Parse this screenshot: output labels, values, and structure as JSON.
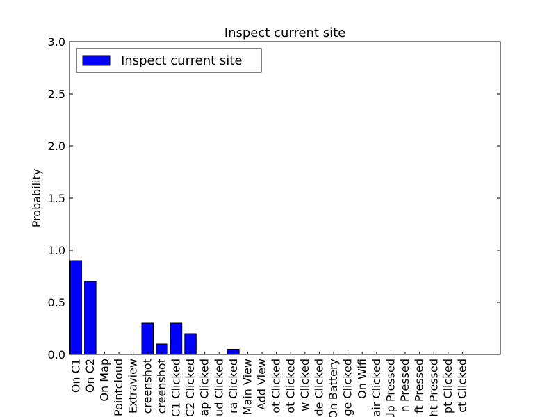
{
  "chart_data": {
    "type": "bar",
    "title": "Inspect current site",
    "xlabel": "",
    "ylabel": "Probability",
    "ylim": [
      0,
      3.0
    ],
    "yticks": [
      "0.0",
      "0.5",
      "1.0",
      "1.5",
      "2.0",
      "2.5",
      "3.0"
    ],
    "legend": "upper-left",
    "grid": false,
    "categories": [
      "On C1",
      "On C2",
      "On Map",
      "Pointcloud",
      "Extraview",
      "creenshot",
      "creenshot",
      "C1 Clicked",
      "C2 Clicked",
      "ap Clicked",
      "ud Clicked",
      "ra Clicked",
      "Main  View",
      "Add View",
      "ot Clicked",
      "ot Clicked",
      "w Clicked",
      "de Clicked",
      "On Battery",
      "ge Clicked",
      "On Wifi",
      "air Clicked",
      "Up Pressed",
      "n Pressed",
      "ft Pressed",
      "ht Pressed",
      "pt Clicked",
      "ct Clicked"
    ],
    "series": [
      {
        "name": "Inspect current site",
        "color": "#0000ff",
        "values": [
          0.9,
          0.7,
          0,
          0,
          0,
          0.3,
          0.1,
          0.3,
          0.2,
          0,
          0,
          0.05,
          0,
          0,
          0,
          0,
          0,
          0,
          0,
          0,
          0,
          0,
          0,
          0,
          0,
          0,
          0,
          0
        ]
      }
    ]
  }
}
